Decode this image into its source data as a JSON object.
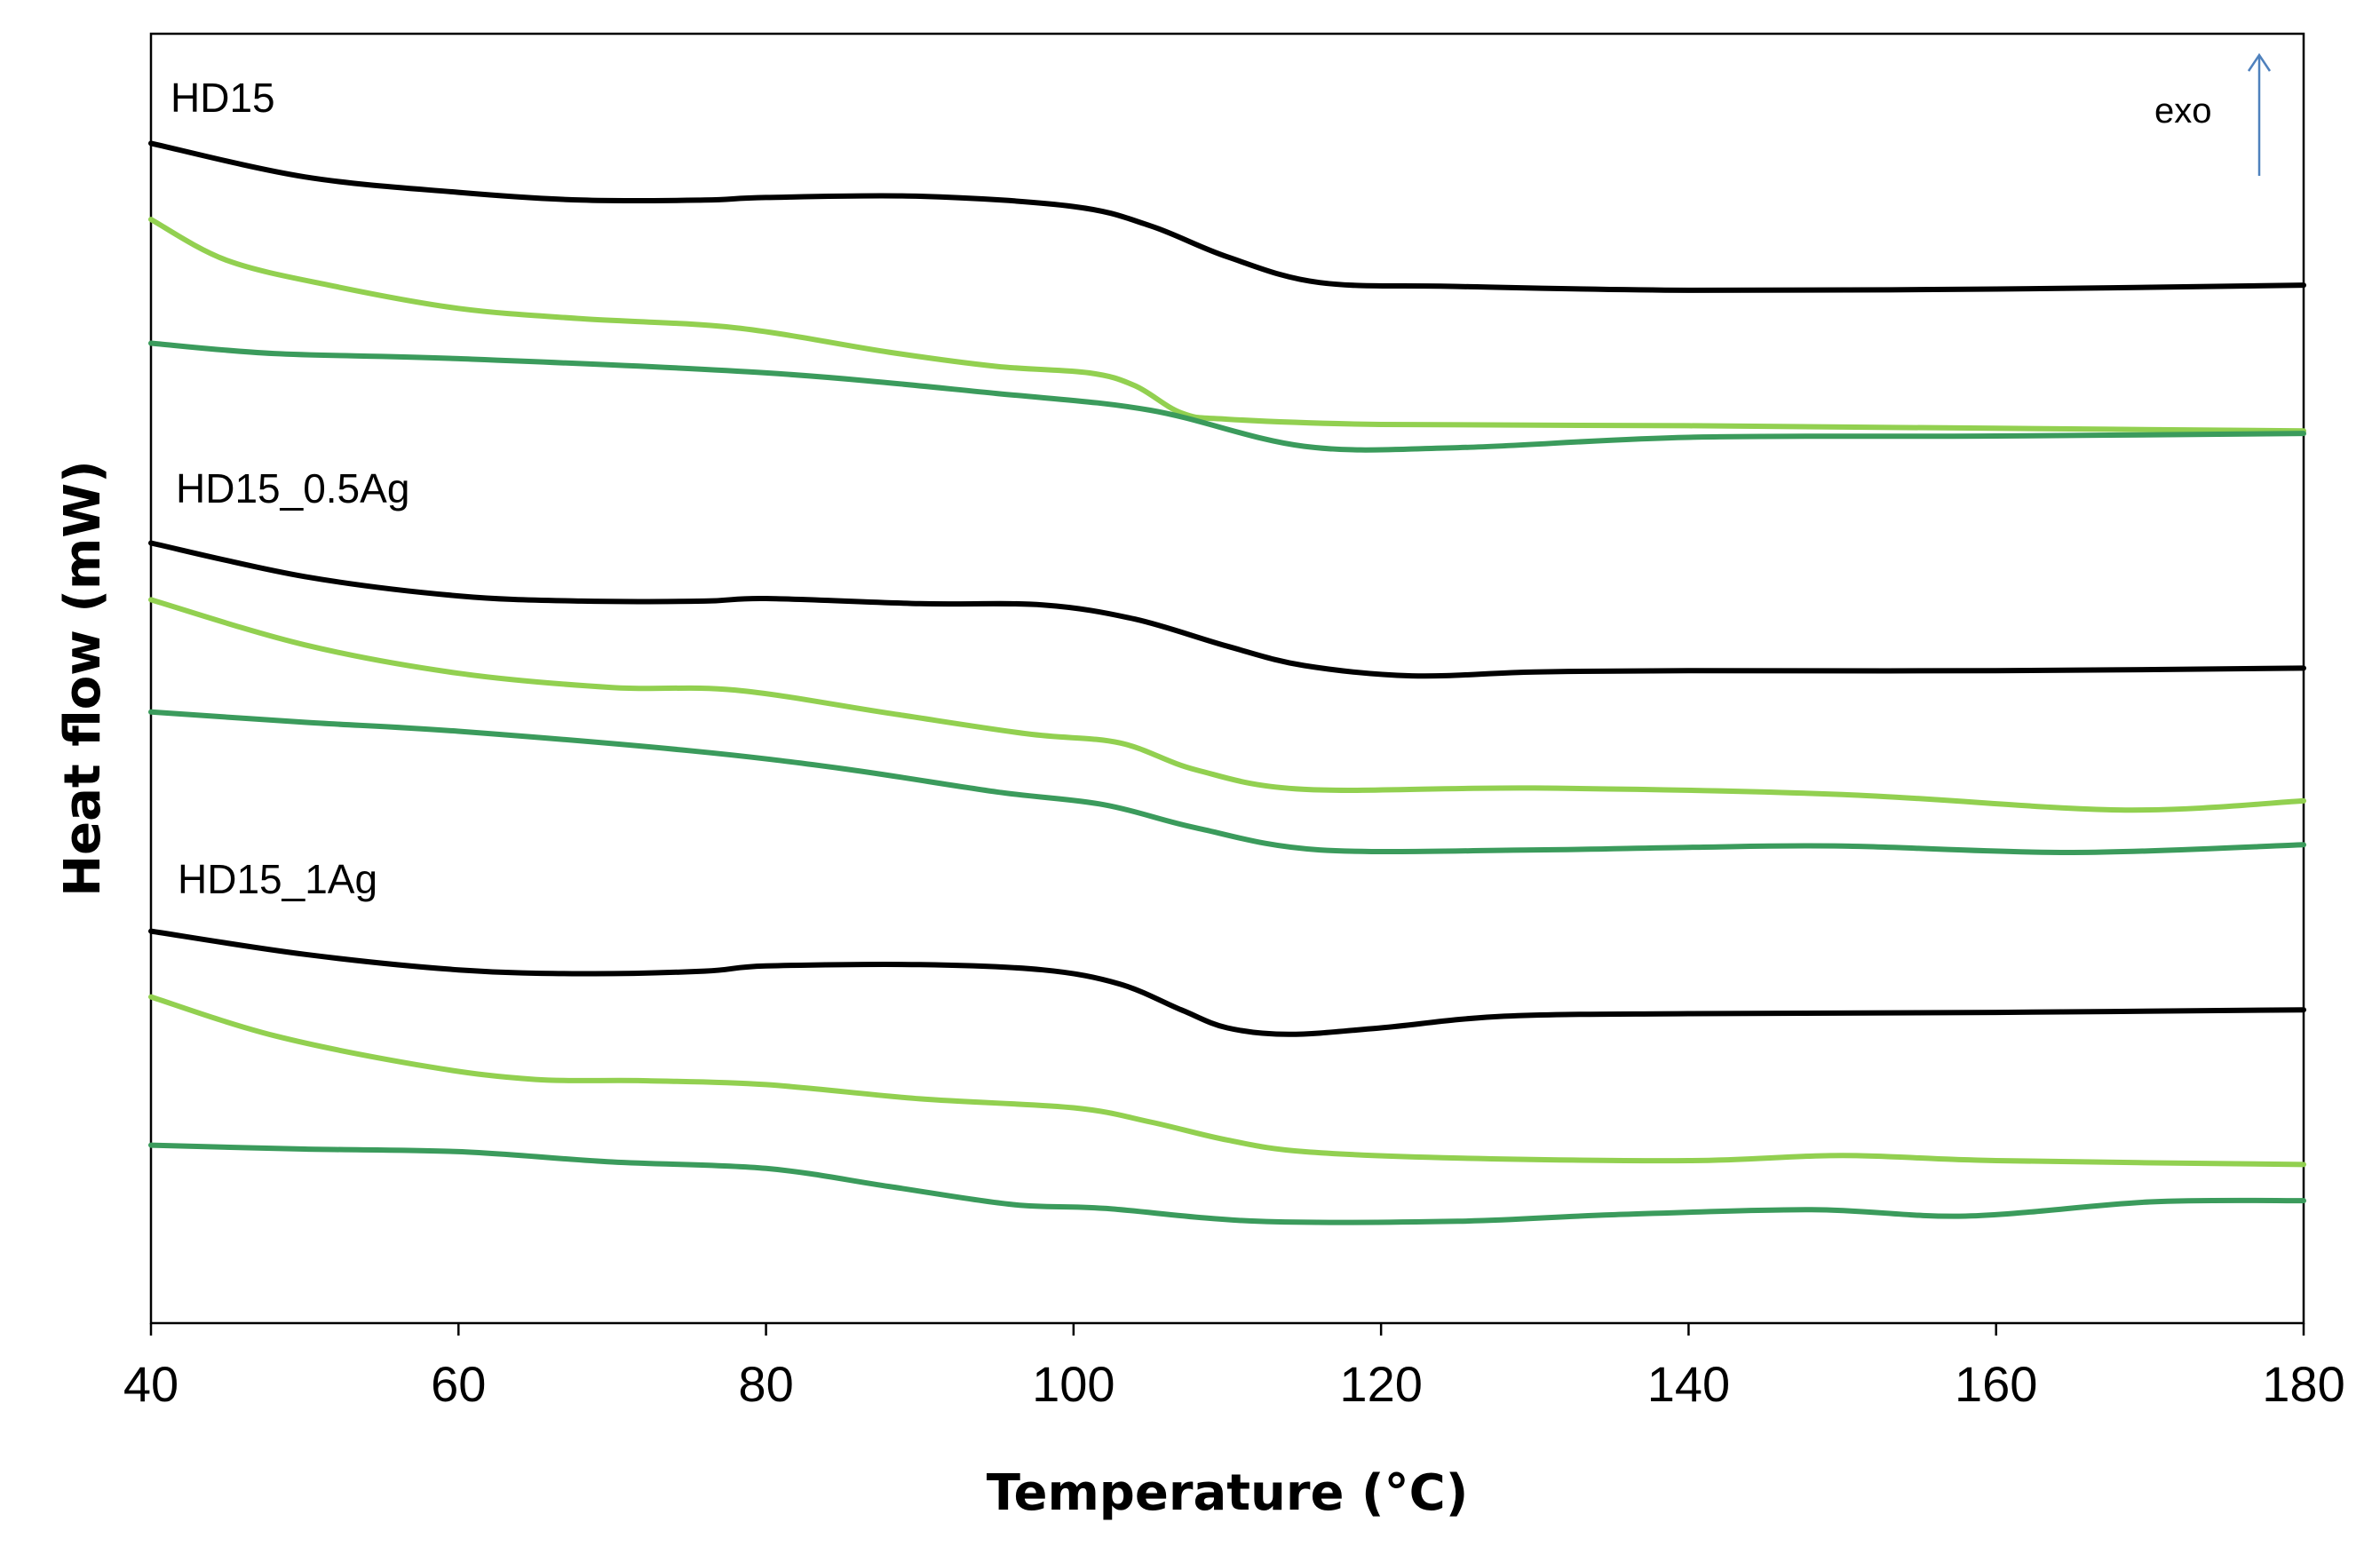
{
  "chart_data": {
    "type": "line",
    "title": "",
    "xlabel": "Temperature (°C)",
    "ylabel": "Heat flow (mW)",
    "xlim": [
      40,
      180
    ],
    "ylim": [
      0,
      100
    ],
    "xticks": [
      40,
      60,
      80,
      100,
      120,
      140,
      160,
      180
    ],
    "yticks_shown": false,
    "grid": false,
    "legend": "none",
    "annotations": [
      {
        "text": "exo",
        "arrow": "up"
      }
    ],
    "group_labels": [
      "HD15",
      "HD15_0.5Ag",
      "HD15_1Ag"
    ],
    "colors": {
      "black": "#000000",
      "light_green": "#92d050",
      "dark_green": "#3b9b5c",
      "arrow": "#4f81bd"
    },
    "series": [
      {
        "name": "HD15 black",
        "group": "HD15",
        "color": "#000000",
        "x": [
          40,
          50,
          60,
          68,
          76,
          80,
          90,
          100,
          105,
          110,
          116,
          125,
          140,
          160,
          180
        ],
        "y": [
          91.5,
          88.9,
          87.7,
          87.1,
          87.1,
          87.3,
          87.4,
          86.6,
          85.1,
          82.7,
          80.7,
          80.4,
          80.1,
          80.2,
          80.5
        ]
      },
      {
        "name": "HD15 light",
        "group": "HD15",
        "color": "#92d050",
        "x": [
          40,
          45,
          52,
          60,
          68,
          78,
          88,
          95,
          101,
          104,
          107,
          110,
          120,
          140,
          160,
          180
        ],
        "y": [
          85.6,
          82.4,
          80.4,
          78.7,
          77.9,
          77.2,
          75.3,
          74.2,
          73.7,
          72.7,
          70.6,
          70.1,
          69.7,
          69.6,
          69.4,
          69.2
        ]
      },
      {
        "name": "HD15 dark",
        "group": "HD15",
        "color": "#3b9b5c",
        "x": [
          40,
          48,
          60,
          80,
          95,
          105,
          115,
          125,
          140,
          160,
          180
        ],
        "y": [
          76.0,
          75.2,
          74.8,
          73.7,
          72.1,
          70.8,
          68.0,
          67.9,
          68.7,
          68.8,
          69.0
        ]
      },
      {
        "name": "HD15_0.5Ag black",
        "group": "HD15_0.5Ag",
        "color": "#000000",
        "x": [
          40,
          50,
          60,
          68,
          76,
          80,
          90,
          98,
          104,
          110,
          115,
          122,
          130,
          140,
          160,
          180
        ],
        "y": [
          60.5,
          57.9,
          56.4,
          56.0,
          56.0,
          56.2,
          55.8,
          55.7,
          54.6,
          52.5,
          51.0,
          50.2,
          50.5,
          50.6,
          50.6,
          50.8
        ]
      },
      {
        "name": "HD15_0.5Ag light",
        "group": "HD15_0.5Ag",
        "color": "#92d050",
        "x": [
          40,
          50,
          60,
          70,
          78,
          88,
          97,
          103,
          108,
          115,
          130,
          150,
          168,
          180
        ],
        "y": [
          56.1,
          52.6,
          50.4,
          49.3,
          49.1,
          47.3,
          45.7,
          45.0,
          42.9,
          41.4,
          41.5,
          41.0,
          39.8,
          40.5
        ]
      },
      {
        "name": "HD15_0.5Ag dark",
        "group": "HD15_0.5Ag",
        "color": "#3b9b5c",
        "x": [
          40,
          50,
          60,
          75,
          85,
          95,
          102,
          108,
          116,
          130,
          140,
          150,
          165,
          180
        ],
        "y": [
          47.4,
          46.6,
          45.9,
          44.4,
          43.0,
          41.2,
          40.2,
          38.4,
          36.7,
          36.7,
          36.9,
          37.0,
          36.5,
          37.1
        ]
      },
      {
        "name": "HD15_1Ag black",
        "group": "HD15_1Ag",
        "color": "#000000",
        "x": [
          40,
          50,
          60,
          68,
          76,
          80,
          90,
          98,
          103,
          107,
          110,
          114,
          120,
          128,
          140,
          160,
          180
        ],
        "y": [
          30.4,
          28.6,
          27.4,
          27.1,
          27.3,
          27.7,
          27.8,
          27.4,
          26.3,
          24.3,
          22.9,
          22.4,
          22.9,
          23.8,
          24.0,
          24.1,
          24.3
        ]
      },
      {
        "name": "HD15_1Ag light",
        "group": "HD15_1Ag",
        "color": "#92d050",
        "x": [
          40,
          48,
          58,
          65,
          72,
          80,
          90,
          100,
          105,
          110,
          115,
          125,
          140,
          150,
          160,
          180
        ],
        "y": [
          25.3,
          22.3,
          19.9,
          18.9,
          18.8,
          18.5,
          17.4,
          16.7,
          15.6,
          14.2,
          13.3,
          12.8,
          12.6,
          13.0,
          12.6,
          12.3
        ]
      },
      {
        "name": "HD15_1Ag dark",
        "group": "HD15_1Ag",
        "color": "#3b9b5c",
        "x": [
          40,
          50,
          60,
          70,
          80,
          88,
          96,
          102,
          112,
          125,
          135,
          148,
          158,
          170,
          180
        ],
        "y": [
          13.8,
          13.5,
          13.3,
          12.5,
          12.0,
          10.6,
          9.2,
          8.9,
          7.9,
          7.9,
          8.4,
          8.8,
          8.3,
          9.4,
          9.5
        ]
      }
    ]
  }
}
